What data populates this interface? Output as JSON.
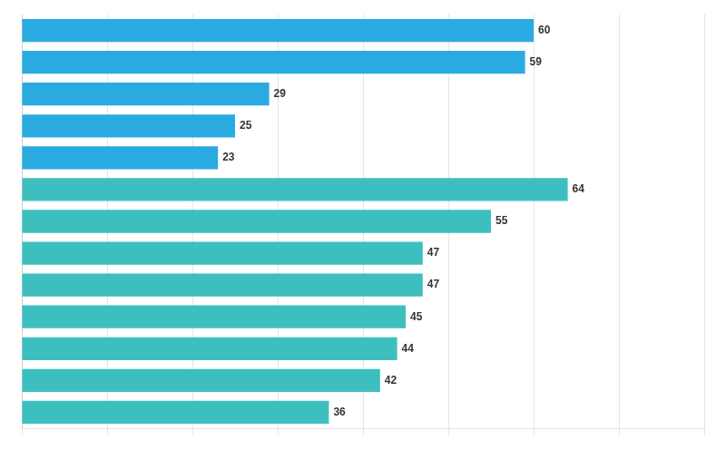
{
  "chart_data": {
    "type": "bar",
    "orientation": "horizontal",
    "categories": [
      null,
      null,
      null,
      null,
      null,
      null,
      null,
      null,
      null,
      null,
      null,
      null,
      null
    ],
    "values": [
      60,
      59,
      29,
      25,
      23,
      64,
      55,
      47,
      47,
      45,
      44,
      42,
      36
    ],
    "colors": [
      "#29ABE2",
      "#29ABE2",
      "#29ABE2",
      "#29ABE2",
      "#29ABE2",
      "#3DBFBF",
      "#3DBFBF",
      "#3DBFBF",
      "#3DBFBF",
      "#3DBFBF",
      "#3DBFBF",
      "#3DBFBF",
      "#3DBFBF"
    ],
    "xlim": [
      0,
      80
    ],
    "xticks": [
      0,
      10,
      20,
      30,
      40,
      50,
      60,
      70,
      80
    ],
    "grid": true,
    "data_labels": true,
    "tick_labels": false
  }
}
